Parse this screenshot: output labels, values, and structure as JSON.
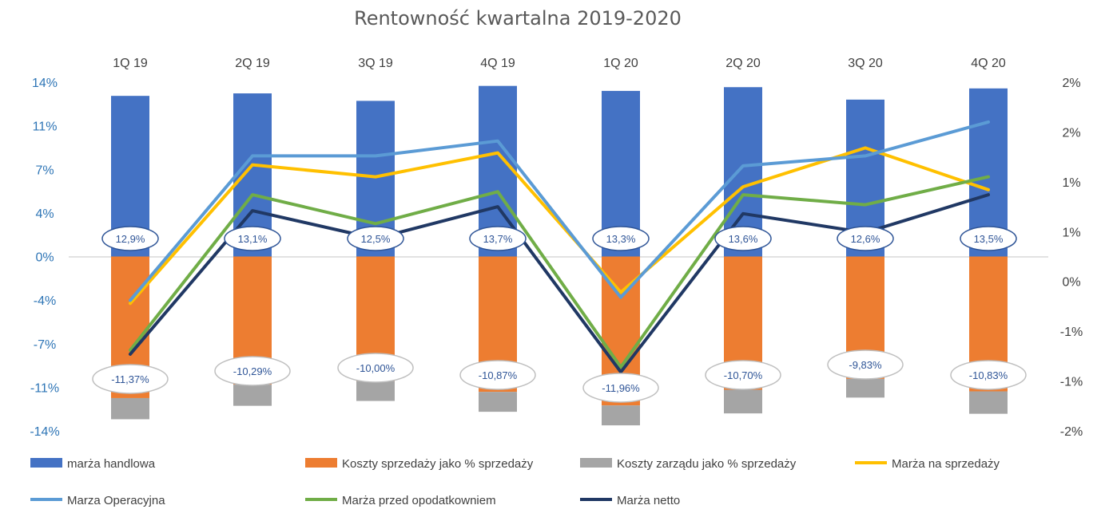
{
  "chart_data": {
    "type": "bar",
    "title": "Rentowność kwartalna 2019-2020",
    "categories": [
      "1Q 19",
      "2Q 19",
      "3Q 19",
      "4Q 19",
      "1Q 20",
      "2Q 20",
      "3Q 20",
      "4Q 20"
    ],
    "left_axis": {
      "ticks": [
        "14%",
        "11%",
        "7%",
        "4%",
        "0%",
        "-4%",
        "-7%",
        "-11%",
        "-14%"
      ],
      "tick_values": [
        14,
        10.5,
        7,
        3.5,
        0,
        -3.5,
        -7,
        -10.5,
        -14
      ],
      "ylim": [
        -14,
        14
      ]
    },
    "right_axis": {
      "ticks": [
        "2%",
        "2%",
        "1%",
        "1%",
        "0%",
        "-1%",
        "-1%",
        "-2%"
      ],
      "tick_values": [
        2.0,
        1.5,
        1.0,
        0.5,
        0.0,
        -0.5,
        -1.0,
        -1.5
      ],
      "ylim": [
        -1.5,
        2.0
      ]
    },
    "bar_series": [
      {
        "name": "marża handlowa",
        "color": "#4472c4",
        "stack": "positive",
        "values": [
          12.9,
          13.1,
          12.5,
          13.7,
          13.3,
          13.6,
          12.6,
          13.5
        ],
        "labels": [
          "12,9%",
          "13,1%",
          "12,5%",
          "13,7%",
          "13,3%",
          "13,6%",
          "12,6%",
          "13,5%"
        ]
      },
      {
        "name": "Koszty sprzedaży jako % sprzedaży",
        "color": "#ed7d31",
        "stack": "negative",
        "values": [
          -11.37,
          -10.29,
          -10.0,
          -10.87,
          -11.96,
          -10.7,
          -9.83,
          -10.83
        ],
        "labels": [
          "-11,37%",
          "-10,29%",
          "-10,00%",
          "-10,87%",
          "-11,96%",
          "-10,70%",
          "-9,83%",
          "-10,83%"
        ]
      },
      {
        "name": "Koszty zarządu jako % sprzedaży",
        "color": "#a5a5a5",
        "stack": "negative",
        "values": [
          -1.7,
          -1.7,
          -1.6,
          -1.6,
          -1.6,
          -1.9,
          -1.5,
          -1.8
        ]
      }
    ],
    "line_series": [
      {
        "name": "Marża na sprzedaży",
        "color": "#ffc000",
        "axis": "right",
        "values": [
          -0.22,
          1.17,
          1.05,
          1.29,
          -0.11,
          0.95,
          1.34,
          0.92
        ]
      },
      {
        "name": "Marza Operacyjna",
        "color": "#5b9bd5",
        "axis": "right",
        "values": [
          -0.19,
          1.26,
          1.26,
          1.41,
          -0.16,
          1.16,
          1.26,
          1.6
        ]
      },
      {
        "name": "Marża przed opodatkowniem",
        "color": "#70ad47",
        "axis": "right",
        "values": [
          -0.69,
          0.87,
          0.58,
          0.9,
          -0.86,
          0.87,
          0.77,
          1.05
        ]
      },
      {
        "name": "Marża netto",
        "color": "#203864",
        "axis": "right",
        "values": [
          -0.73,
          0.71,
          0.43,
          0.75,
          -0.91,
          0.68,
          0.49,
          0.87
        ]
      }
    ],
    "gridlines": false,
    "legend": "bottom"
  }
}
